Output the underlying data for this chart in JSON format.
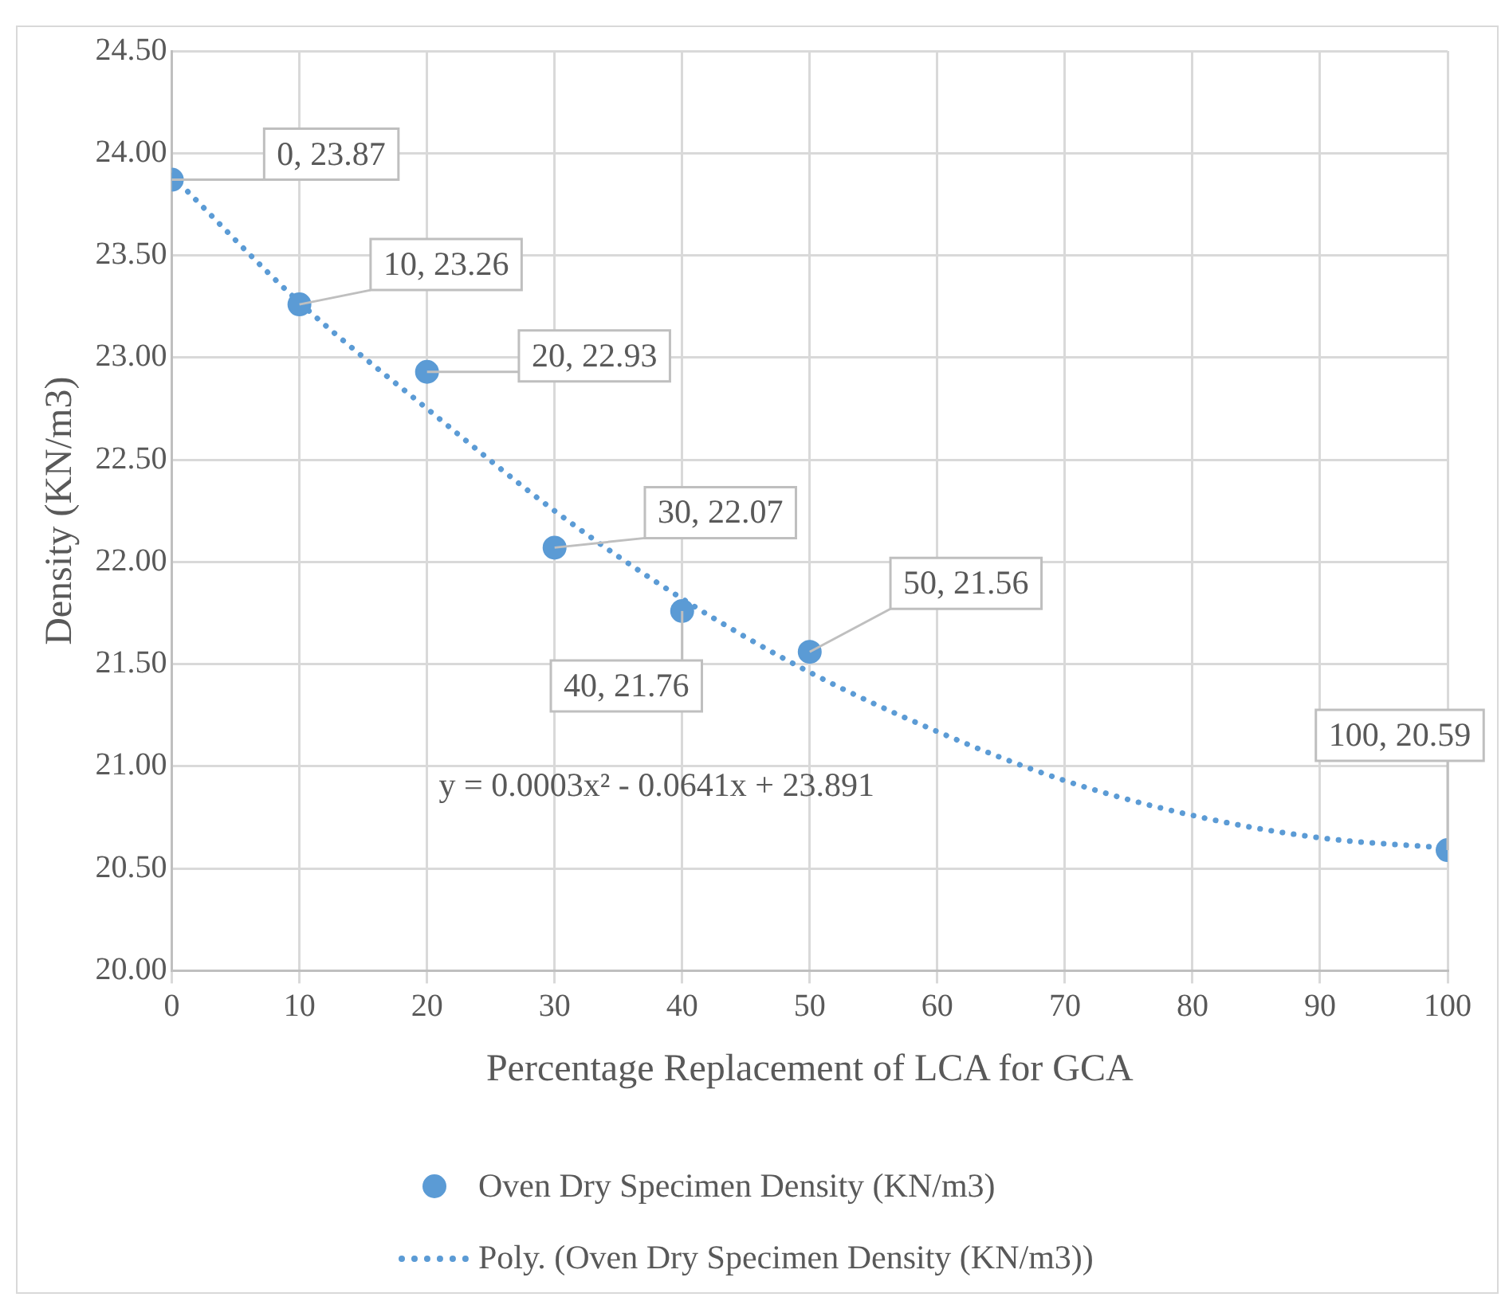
{
  "chart_data": {
    "type": "scatter",
    "xlabel": "Percentage Replacement of LCA for GCA",
    "ylabel": "Density (KN/m3)",
    "xlim": [
      0,
      100
    ],
    "xticks": [
      0,
      10,
      20,
      30,
      40,
      50,
      60,
      70,
      80,
      90,
      100
    ],
    "ylim": [
      20,
      24.5
    ],
    "yticks": [
      {
        "value": 20,
        "label": "20.00"
      },
      {
        "value": 20.5,
        "label": "20.50"
      },
      {
        "value": 21,
        "label": "21.00"
      },
      {
        "value": 21.5,
        "label": "21.50"
      },
      {
        "value": 22,
        "label": "22.00"
      },
      {
        "value": 22.5,
        "label": "22.50"
      },
      {
        "value": 23,
        "label": "23.00"
      },
      {
        "value": 23.5,
        "label": "23.50"
      },
      {
        "value": 24,
        "label": "24.00"
      },
      {
        "value": 24.5,
        "label": "24.50"
      }
    ],
    "grid": true,
    "legend": "bottom",
    "series": [
      {
        "name": "Oven Dry Specimen Density (KN/m3)",
        "type": "scatter",
        "marker": "circle",
        "color": "#5b9bd5",
        "x": [
          0,
          10,
          20,
          30,
          40,
          50,
          100
        ],
        "values": [
          23.87,
          23.26,
          22.93,
          22.07,
          21.76,
          21.56,
          20.59
        ],
        "value_labels": [
          "0, 23.87",
          "10, 23.26",
          "20, 22.93",
          "30, 22.07",
          "40, 21.76",
          "50, 21.56",
          "100, 20.59"
        ]
      },
      {
        "name": "Poly. (Oven Dry Specimen Density (KN/m3))",
        "type": "line",
        "marker": "none",
        "line_style": "dotted",
        "color": "#5b9bd5",
        "x": [
          0,
          10,
          20,
          30,
          40,
          50,
          60,
          70,
          80,
          90,
          100
        ],
        "values": [
          23.89,
          23.27,
          22.75,
          22.25,
          21.82,
          21.46,
          21.17,
          20.93,
          20.76,
          20.65,
          20.6
        ]
      }
    ],
    "annotations": [
      "y = 0.0003x² - 0.0641x + 23.891"
    ]
  }
}
